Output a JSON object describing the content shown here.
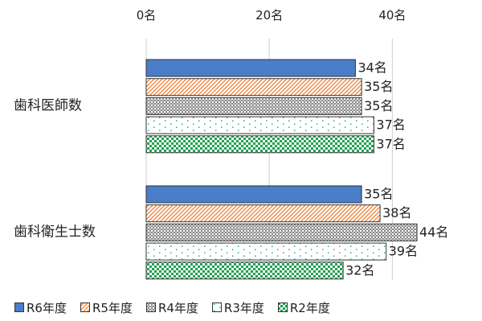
{
  "chart_data": {
    "type": "bar",
    "orientation": "horizontal",
    "categories": [
      "歯科医師数",
      "歯科衛生士数"
    ],
    "unit": "名",
    "xlim": [
      0,
      50
    ],
    "x_ticks": [
      0,
      20,
      40
    ],
    "x_tick_labels": [
      "0名",
      "20名",
      "40名"
    ],
    "x_axis_position": "top",
    "grid": true,
    "legend_position": "bottom",
    "series": [
      {
        "name": "R6年度",
        "values": [
          34,
          35
        ],
        "labels": [
          "34名",
          "35名"
        ],
        "pattern": "solid",
        "color": "#4a7ec8"
      },
      {
        "name": "R5年度",
        "values": [
          35,
          38
        ],
        "labels": [
          "35名",
          "38名"
        ],
        "pattern": "diagonal",
        "color": "#ed7d31"
      },
      {
        "name": "R4年度",
        "values": [
          35,
          44
        ],
        "labels": [
          "35名",
          "44名"
        ],
        "pattern": "grid",
        "color": "#8c8c8c"
      },
      {
        "name": "R3年度",
        "values": [
          37,
          39
        ],
        "labels": [
          "37名",
          "39名"
        ],
        "pattern": "dots",
        "color": "#2eaa8c"
      },
      {
        "name": "R2年度",
        "values": [
          37,
          32
        ],
        "labels": [
          "37名",
          "32名"
        ],
        "pattern": "checker",
        "color": "#22a050"
      }
    ]
  }
}
